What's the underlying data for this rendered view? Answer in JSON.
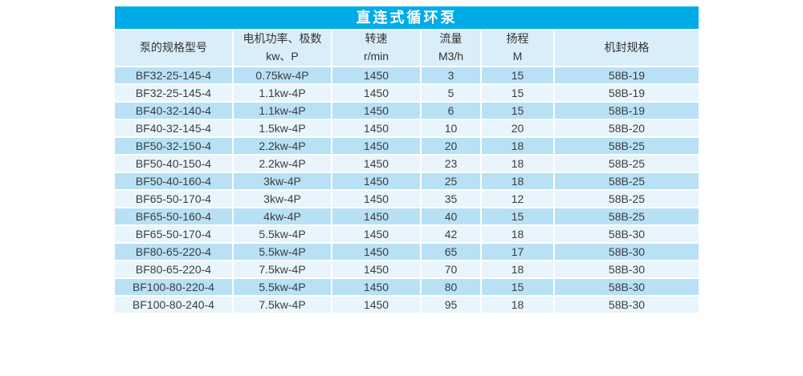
{
  "page": {
    "background": "#ffffff"
  },
  "table": {
    "title": "直连式循环泵",
    "colors": {
      "title_bg": "#00ACE8",
      "title_text": "#ffffff",
      "header_bg": "#D9EEF9",
      "row_odd_bg": "#B8E1F5",
      "row_even_bg": "#E9F5FC",
      "grid": "#ffffff",
      "text": "#3D3D3D"
    },
    "columns": [
      {
        "label": "泵的规格型号"
      },
      {
        "label": "电机功率、极数\nkw、P"
      },
      {
        "label": "转速\nr/min"
      },
      {
        "label": "流量\nM3/h"
      },
      {
        "label": "扬程\nM"
      },
      {
        "label": "机封规格"
      }
    ],
    "rows": [
      [
        "BF32-25-145-4",
        "0.75kw-4P",
        "1450",
        "3",
        "15",
        "58B-19"
      ],
      [
        "BF32-25-145-4",
        "1.1kw-4P",
        "1450",
        "5",
        "15",
        "58B-19"
      ],
      [
        "BF40-32-140-4",
        "1.1kw-4P",
        "1450",
        "6",
        "15",
        "58B-19"
      ],
      [
        "BF40-32-145-4",
        "1.5kw-4P",
        "1450",
        "10",
        "20",
        "58B-20"
      ],
      [
        "BF50-32-150-4",
        "2.2kw-4P",
        "1450",
        "20",
        "18",
        "58B-25"
      ],
      [
        "BF50-40-150-4",
        "2.2kw-4P",
        "1450",
        "23",
        "18",
        "58B-25"
      ],
      [
        "BF50-40-160-4",
        "3kw-4P",
        "1450",
        "25",
        "18",
        "58B-25"
      ],
      [
        "BF65-50-170-4",
        "3kw-4P",
        "1450",
        "35",
        "12",
        "58B-25"
      ],
      [
        "BF65-50-160-4",
        "4kw-4P",
        "1450",
        "40",
        "15",
        "58B-25"
      ],
      [
        "BF65-50-170-4",
        "5.5kw-4P",
        "1450",
        "42",
        "18",
        "58B-30"
      ],
      [
        "BF80-65-220-4",
        "5.5kw-4P",
        "1450",
        "65",
        "17",
        "58B-30"
      ],
      [
        "BF80-65-220-4",
        "7.5kw-4P",
        "1450",
        "70",
        "18",
        "58B-30"
      ],
      [
        "BF100-80-220-4",
        "5.5kw-4P",
        "1450",
        "80",
        "15",
        "58B-30"
      ],
      [
        "BF100-80-240-4",
        "7.5kw-4P",
        "1450",
        "95",
        "18",
        "58B-30"
      ]
    ]
  }
}
